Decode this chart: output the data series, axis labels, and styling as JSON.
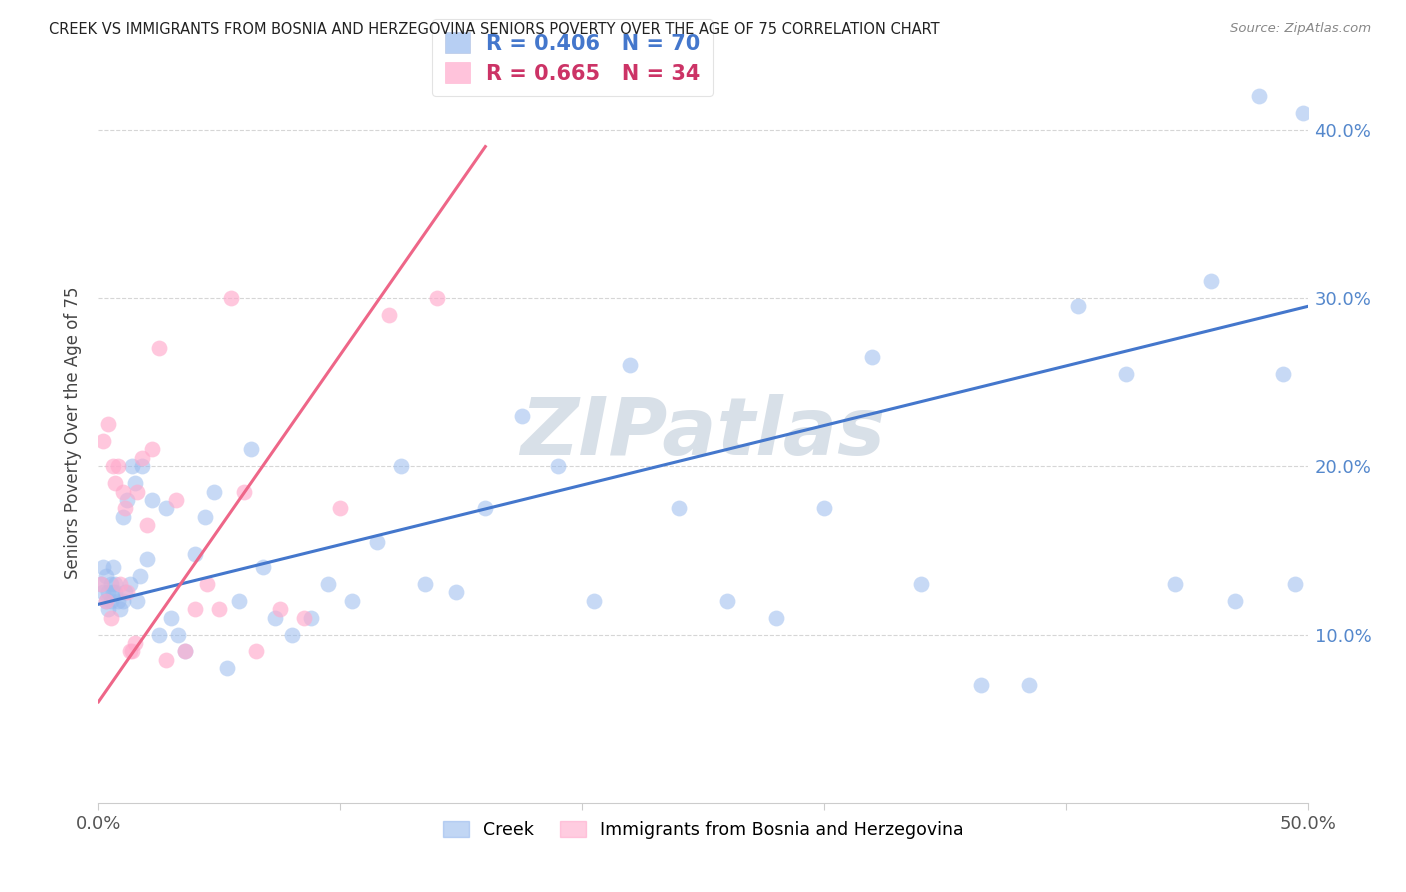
{
  "title": "CREEK VS IMMIGRANTS FROM BOSNIA AND HERZEGOVINA SENIORS POVERTY OVER THE AGE OF 75 CORRELATION CHART",
  "source": "Source: ZipAtlas.com",
  "ylabel": "Seniors Poverty Over the Age of 75",
  "xlim": [
    0.0,
    0.5
  ],
  "ylim": [
    0.0,
    0.44
  ],
  "ytick_vals": [
    0.1,
    0.2,
    0.3,
    0.4
  ],
  "ytick_labels": [
    "10.0%",
    "20.0%",
    "30.0%",
    "40.0%"
  ],
  "xtick_vals": [
    0.0,
    0.1,
    0.2,
    0.3,
    0.4,
    0.5
  ],
  "xtick_labels": [
    "0.0%",
    "",
    "",
    "",
    "",
    "50.0%"
  ],
  "creek_color": "#99BBEE",
  "creek_line_color": "#4477CC",
  "bosnia_color": "#FFAACC",
  "bosnia_line_color": "#EE6688",
  "creek_R": 0.406,
  "creek_N": 70,
  "bosnia_R": 0.665,
  "bosnia_N": 34,
  "creek_line_x0": 0.0,
  "creek_line_y0": 0.118,
  "creek_line_x1": 0.5,
  "creek_line_y1": 0.295,
  "bosnia_line_x0": 0.0,
  "bosnia_line_y0": 0.06,
  "bosnia_line_x1": 0.16,
  "bosnia_line_y1": 0.39,
  "watermark": "ZIPatlas",
  "watermark_color": "#AABBCC",
  "creek_x": [
    0.001,
    0.002,
    0.002,
    0.003,
    0.003,
    0.004,
    0.004,
    0.005,
    0.005,
    0.006,
    0.006,
    0.007,
    0.007,
    0.008,
    0.009,
    0.01,
    0.01,
    0.011,
    0.012,
    0.013,
    0.014,
    0.015,
    0.016,
    0.017,
    0.018,
    0.02,
    0.022,
    0.025,
    0.028,
    0.03,
    0.033,
    0.036,
    0.04,
    0.044,
    0.048,
    0.053,
    0.058,
    0.063,
    0.068,
    0.073,
    0.08,
    0.088,
    0.095,
    0.105,
    0.115,
    0.125,
    0.135,
    0.148,
    0.16,
    0.175,
    0.19,
    0.205,
    0.22,
    0.24,
    0.26,
    0.28,
    0.3,
    0.32,
    0.34,
    0.365,
    0.385,
    0.405,
    0.425,
    0.445,
    0.46,
    0.47,
    0.48,
    0.49,
    0.495,
    0.498
  ],
  "creek_y": [
    0.13,
    0.14,
    0.125,
    0.12,
    0.135,
    0.115,
    0.125,
    0.12,
    0.13,
    0.125,
    0.14,
    0.125,
    0.13,
    0.12,
    0.115,
    0.17,
    0.12,
    0.125,
    0.18,
    0.13,
    0.2,
    0.19,
    0.12,
    0.135,
    0.2,
    0.145,
    0.18,
    0.1,
    0.175,
    0.11,
    0.1,
    0.09,
    0.148,
    0.17,
    0.185,
    0.08,
    0.12,
    0.21,
    0.14,
    0.11,
    0.1,
    0.11,
    0.13,
    0.12,
    0.155,
    0.2,
    0.13,
    0.125,
    0.175,
    0.23,
    0.2,
    0.12,
    0.26,
    0.175,
    0.12,
    0.11,
    0.175,
    0.265,
    0.13,
    0.07,
    0.07,
    0.295,
    0.255,
    0.13,
    0.31,
    0.12,
    0.42,
    0.255,
    0.13,
    0.41
  ],
  "bosnia_x": [
    0.001,
    0.002,
    0.003,
    0.004,
    0.005,
    0.006,
    0.007,
    0.008,
    0.009,
    0.01,
    0.011,
    0.012,
    0.013,
    0.014,
    0.015,
    0.016,
    0.018,
    0.02,
    0.022,
    0.025,
    0.028,
    0.032,
    0.036,
    0.04,
    0.045,
    0.05,
    0.055,
    0.06,
    0.065,
    0.075,
    0.085,
    0.1,
    0.12,
    0.14
  ],
  "bosnia_y": [
    0.13,
    0.215,
    0.12,
    0.225,
    0.11,
    0.2,
    0.19,
    0.2,
    0.13,
    0.185,
    0.175,
    0.125,
    0.09,
    0.09,
    0.095,
    0.185,
    0.205,
    0.165,
    0.21,
    0.27,
    0.085,
    0.18,
    0.09,
    0.115,
    0.13,
    0.115,
    0.3,
    0.185,
    0.09,
    0.115,
    0.11,
    0.175,
    0.29,
    0.3
  ]
}
